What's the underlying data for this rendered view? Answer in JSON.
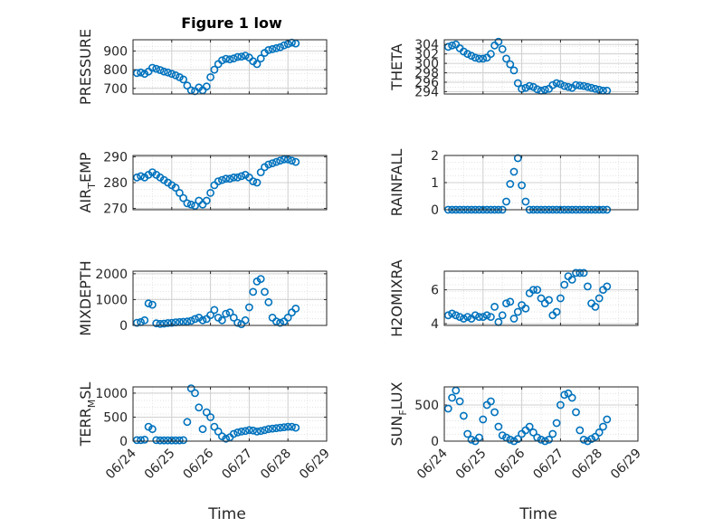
{
  "figure": {
    "title": "Figure 1 low",
    "xlabel": "Time",
    "x_ticks": [
      "06/24",
      "06/25",
      "06/26",
      "06/27",
      "06/28",
      "06/29"
    ],
    "marker_color": "#0072BD"
  },
  "chart_data": [
    {
      "type": "scatter",
      "ylabel": "PRESSURE",
      "ylim": [
        670,
        960
      ],
      "yticks": [
        700,
        800,
        900
      ],
      "xlim": [
        0,
        5
      ],
      "grid": true,
      "x": [
        0.1,
        0.2,
        0.3,
        0.4,
        0.5,
        0.6,
        0.7,
        0.8,
        0.9,
        1.0,
        1.1,
        1.2,
        1.3,
        1.4,
        1.5,
        1.6,
        1.7,
        1.8,
        1.9,
        2.0,
        2.1,
        2.2,
        2.3,
        2.4,
        2.5,
        2.6,
        2.7,
        2.8,
        2.9,
        3.0,
        3.1,
        3.2,
        3.3,
        3.4,
        3.5,
        3.6,
        3.7,
        3.8,
        3.9,
        4.0,
        4.1,
        4.2
      ],
      "y": [
        782,
        785,
        778,
        790,
        810,
        805,
        798,
        790,
        785,
        778,
        770,
        760,
        748,
        715,
        690,
        685,
        705,
        690,
        710,
        760,
        800,
        830,
        850,
        858,
        855,
        860,
        868,
        870,
        875,
        865,
        845,
        830,
        860,
        890,
        905,
        910,
        915,
        920,
        930,
        938,
        945,
        940
      ]
    },
    {
      "type": "scatter",
      "ylabel": "THETA",
      "ylim": [
        293.5,
        305
      ],
      "yticks": [
        294,
        296,
        298,
        300,
        302,
        304
      ],
      "xlim": [
        0,
        5
      ],
      "grid": true,
      "x": [
        0.1,
        0.2,
        0.3,
        0.4,
        0.5,
        0.6,
        0.7,
        0.8,
        0.9,
        1.0,
        1.1,
        1.2,
        1.3,
        1.4,
        1.5,
        1.6,
        1.7,
        1.8,
        1.9,
        2.0,
        2.1,
        2.2,
        2.3,
        2.4,
        2.5,
        2.6,
        2.7,
        2.8,
        2.9,
        3.0,
        3.1,
        3.2,
        3.3,
        3.4,
        3.5,
        3.6,
        3.7,
        3.8,
        3.9,
        4.0,
        4.1,
        4.2
      ],
      "y": [
        303.5,
        303.8,
        304.0,
        303.2,
        302.5,
        302.0,
        301.6,
        301.2,
        301.0,
        301.0,
        301.2,
        302.0,
        303.8,
        304.6,
        303.0,
        301.0,
        299.8,
        298.5,
        295.8,
        294.6,
        294.8,
        295.2,
        295.0,
        294.5,
        294.2,
        294.4,
        294.6,
        295.4,
        295.8,
        295.6,
        295.2,
        295.0,
        294.8,
        295.4,
        295.3,
        295.2,
        295.0,
        294.8,
        294.6,
        294.4,
        294.2,
        294.2
      ]
    },
    {
      "type": "scatter",
      "ylabel": "AIR",
      "ylabel_sub": "T",
      "ylabel_rest": "EMP",
      "ylim": [
        269.5,
        290.5
      ],
      "yticks": [
        270,
        280,
        290
      ],
      "xlim": [
        0,
        5
      ],
      "grid": true,
      "x": [
        0.1,
        0.2,
        0.3,
        0.4,
        0.5,
        0.6,
        0.7,
        0.8,
        0.9,
        1.0,
        1.1,
        1.2,
        1.3,
        1.4,
        1.5,
        1.6,
        1.7,
        1.8,
        1.9,
        2.0,
        2.1,
        2.2,
        2.3,
        2.4,
        2.5,
        2.6,
        2.7,
        2.8,
        2.9,
        3.0,
        3.1,
        3.2,
        3.3,
        3.4,
        3.5,
        3.6,
        3.7,
        3.8,
        3.9,
        4.0,
        4.1,
        4.2
      ],
      "y": [
        282,
        282.5,
        282,
        283,
        284,
        283,
        282,
        281,
        280,
        279,
        278,
        276,
        274,
        272,
        271.5,
        271,
        273,
        271.5,
        273,
        276,
        279,
        280.5,
        281,
        281.5,
        281.5,
        282,
        282,
        282.5,
        283,
        282,
        280.5,
        280,
        284,
        286,
        287,
        287.5,
        288,
        288.5,
        289,
        289,
        288.5,
        288
      ]
    },
    {
      "type": "scatter",
      "ylabel": "RAINFALL",
      "ylim": [
        0,
        2
      ],
      "yticks": [
        0,
        1,
        2
      ],
      "xlim": [
        0,
        5
      ],
      "grid": true,
      "x": [
        0.1,
        0.2,
        0.3,
        0.4,
        0.5,
        0.6,
        0.7,
        0.8,
        0.9,
        1.0,
        1.1,
        1.2,
        1.3,
        1.4,
        1.5,
        1.6,
        1.7,
        1.8,
        1.9,
        2.0,
        2.1,
        2.2,
        2.3,
        2.4,
        2.5,
        2.6,
        2.7,
        2.8,
        2.9,
        3.0,
        3.1,
        3.2,
        3.3,
        3.4,
        3.5,
        3.6,
        3.7,
        3.8,
        3.9,
        4.0,
        4.1,
        4.2
      ],
      "y": [
        0,
        0,
        0,
        0,
        0,
        0,
        0,
        0,
        0,
        0,
        0,
        0,
        0,
        0,
        0,
        0.3,
        0.95,
        1.4,
        1.9,
        0.9,
        0.3,
        0,
        0,
        0,
        0,
        0,
        0,
        0,
        0,
        0,
        0,
        0,
        0,
        0,
        0,
        0,
        0,
        0,
        0,
        0,
        0,
        0
      ]
    },
    {
      "type": "scatter",
      "ylabel": "MIXDEPTH",
      "ylim": [
        0,
        2100
      ],
      "yticks": [
        0,
        1000,
        2000
      ],
      "xlim": [
        0,
        5
      ],
      "grid": true,
      "x": [
        0.1,
        0.2,
        0.3,
        0.4,
        0.5,
        0.6,
        0.7,
        0.8,
        0.9,
        1.0,
        1.1,
        1.2,
        1.3,
        1.4,
        1.5,
        1.6,
        1.7,
        1.8,
        1.9,
        2.0,
        2.1,
        2.2,
        2.3,
        2.4,
        2.5,
        2.6,
        2.7,
        2.8,
        2.9,
        3.0,
        3.1,
        3.2,
        3.3,
        3.4,
        3.5,
        3.6,
        3.7,
        3.8,
        3.9,
        4.0,
        4.1,
        4.2
      ],
      "y": [
        100,
        130,
        200,
        850,
        800,
        80,
        60,
        70,
        90,
        100,
        120,
        130,
        140,
        150,
        180,
        250,
        300,
        200,
        250,
        400,
        600,
        300,
        200,
        450,
        500,
        300,
        100,
        50,
        200,
        700,
        1300,
        1700,
        1800,
        1300,
        900,
        300,
        150,
        100,
        150,
        300,
        500,
        650
      ]
    },
    {
      "type": "scatter",
      "ylabel": "H2OMIXRA",
      "ylim": [
        3.9,
        7.1
      ],
      "yticks": [
        4,
        6
      ],
      "xlim": [
        0,
        5
      ],
      "grid": true,
      "x": [
        0.1,
        0.2,
        0.3,
        0.4,
        0.5,
        0.6,
        0.7,
        0.8,
        0.9,
        1.0,
        1.1,
        1.2,
        1.3,
        1.4,
        1.5,
        1.6,
        1.7,
        1.8,
        1.9,
        2.0,
        2.1,
        2.2,
        2.3,
        2.4,
        2.5,
        2.6,
        2.7,
        2.8,
        2.9,
        3.0,
        3.1,
        3.2,
        3.3,
        3.4,
        3.5,
        3.6,
        3.7,
        3.8,
        3.9,
        4.0,
        4.1,
        4.2
      ],
      "y": [
        4.5,
        4.6,
        4.5,
        4.4,
        4.3,
        4.4,
        4.3,
        4.5,
        4.4,
        4.4,
        4.5,
        4.4,
        5.0,
        4.1,
        4.5,
        5.2,
        5.3,
        4.3,
        4.7,
        5.1,
        4.9,
        5.8,
        6.0,
        6.0,
        5.5,
        5.2,
        5.4,
        4.5,
        4.7,
        5.5,
        6.3,
        6.8,
        6.6,
        7.0,
        7.0,
        7.0,
        6.2,
        5.2,
        5.0,
        5.5,
        6.0,
        6.2
      ]
    },
    {
      "type": "scatter",
      "ylabel": "TERR",
      "ylabel_sub": "M",
      "ylabel_rest": "SL",
      "ylim": [
        0,
        1130
      ],
      "yticks": [
        0,
        500,
        1000
      ],
      "xlim": [
        0,
        5
      ],
      "grid": true,
      "x": [
        0.1,
        0.2,
        0.3,
        0.4,
        0.5,
        0.6,
        0.7,
        0.8,
        0.9,
        1.0,
        1.1,
        1.2,
        1.3,
        1.4,
        1.5,
        1.6,
        1.7,
        1.8,
        1.9,
        2.0,
        2.1,
        2.2,
        2.3,
        2.4,
        2.5,
        2.6,
        2.7,
        2.8,
        2.9,
        3.0,
        3.1,
        3.2,
        3.3,
        3.4,
        3.5,
        3.6,
        3.7,
        3.8,
        3.9,
        4.0,
        4.1,
        4.2
      ],
      "y": [
        20,
        20,
        30,
        300,
        250,
        20,
        15,
        15,
        15,
        15,
        15,
        15,
        20,
        400,
        1100,
        1000,
        700,
        250,
        600,
        500,
        300,
        200,
        100,
        50,
        80,
        150,
        180,
        200,
        210,
        230,
        220,
        200,
        210,
        230,
        250,
        260,
        270,
        280,
        290,
        300,
        300,
        280
      ]
    },
    {
      "type": "scatter",
      "ylabel": "SUN",
      "ylabel_sub": "F",
      "ylabel_rest": "LUX",
      "ylim": [
        0,
        750
      ],
      "yticks": [
        0,
        500
      ],
      "xlim": [
        0,
        5
      ],
      "grid": true,
      "x": [
        0.1,
        0.2,
        0.3,
        0.4,
        0.5,
        0.6,
        0.7,
        0.8,
        0.9,
        1.0,
        1.1,
        1.2,
        1.3,
        1.4,
        1.5,
        1.6,
        1.7,
        1.8,
        1.9,
        2.0,
        2.1,
        2.2,
        2.3,
        2.4,
        2.5,
        2.6,
        2.7,
        2.8,
        2.9,
        3.0,
        3.1,
        3.2,
        3.3,
        3.4,
        3.5,
        3.6,
        3.7,
        3.8,
        3.9,
        4.0,
        4.1,
        4.2
      ],
      "y": [
        450,
        600,
        700,
        550,
        350,
        100,
        20,
        0,
        50,
        300,
        500,
        550,
        400,
        200,
        80,
        50,
        20,
        0,
        30,
        100,
        150,
        200,
        120,
        50,
        20,
        0,
        20,
        100,
        250,
        500,
        640,
        660,
        600,
        400,
        150,
        20,
        0,
        30,
        60,
        120,
        200,
        300
      ]
    }
  ]
}
